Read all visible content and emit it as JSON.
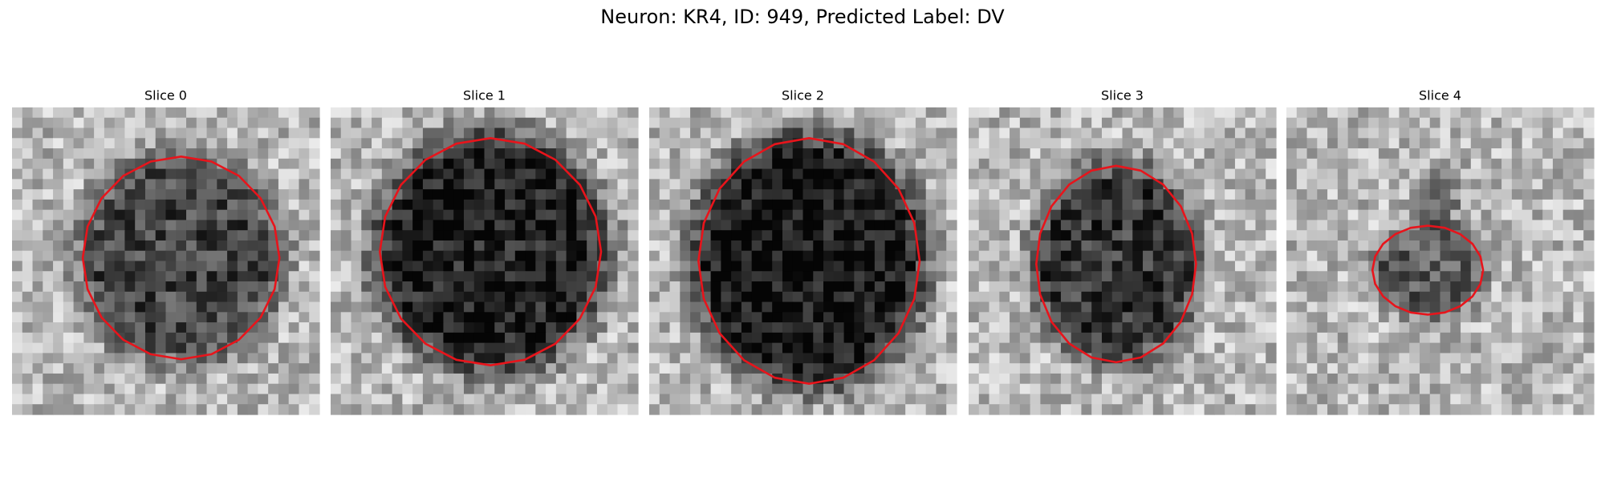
{
  "title": "Neuron: KR4, ID: 949, Predicted Label: DV",
  "panels": [
    {
      "label": "Slice 0"
    },
    {
      "label": "Slice 1"
    },
    {
      "label": "Slice 2"
    },
    {
      "label": "Slice 3"
    },
    {
      "label": "Slice 4"
    }
  ]
}
